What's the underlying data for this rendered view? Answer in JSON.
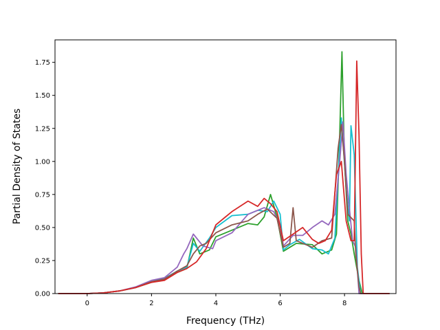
{
  "chart_data": {
    "type": "line",
    "title": "",
    "xlabel": "Frequency (THz)",
    "ylabel": "Partial Density of States",
    "xlim": [
      -1.0,
      9.6
    ],
    "ylim": [
      0.0,
      1.92
    ],
    "xticks": [
      0,
      2,
      4,
      6,
      8
    ],
    "xtick_labels": [
      "0",
      "2",
      "4",
      "6",
      "8"
    ],
    "yticks": [
      0.0,
      0.25,
      0.5,
      0.75,
      1.0,
      1.25,
      1.5,
      1.75
    ],
    "ytick_labels": [
      "0.00",
      "0.25",
      "0.50",
      "0.75",
      "1.00",
      "1.25",
      "1.50",
      "1.75"
    ],
    "grid": false,
    "legend": "none",
    "series": [
      {
        "color": "#2ca02c",
        "points": [
          [
            -0.9,
            0
          ],
          [
            0,
            0
          ],
          [
            0.5,
            0.005
          ],
          [
            1,
            0.02
          ],
          [
            1.5,
            0.045
          ],
          [
            2,
            0.085
          ],
          [
            2.4,
            0.11
          ],
          [
            2.8,
            0.16
          ],
          [
            3.1,
            0.19
          ],
          [
            3.3,
            0.42
          ],
          [
            3.5,
            0.3
          ],
          [
            3.8,
            0.33
          ],
          [
            4,
            0.43
          ],
          [
            4.5,
            0.48
          ],
          [
            5,
            0.53
          ],
          [
            5.3,
            0.52
          ],
          [
            5.5,
            0.58
          ],
          [
            5.7,
            0.75
          ],
          [
            5.9,
            0.58
          ],
          [
            6.1,
            0.32
          ],
          [
            6.3,
            0.35
          ],
          [
            6.5,
            0.38
          ],
          [
            7,
            0.37
          ],
          [
            7.3,
            0.3
          ],
          [
            7.6,
            0.33
          ],
          [
            7.75,
            0.45
          ],
          [
            7.85,
            1.2
          ],
          [
            7.92,
            1.83
          ],
          [
            8.0,
            1.0
          ],
          [
            8.1,
            0.55
          ],
          [
            8.2,
            0.45
          ],
          [
            8.3,
            0.3
          ],
          [
            8.45,
            0.1
          ],
          [
            8.55,
            0
          ],
          [
            9.4,
            0
          ]
        ]
      },
      {
        "color": "#17becf",
        "points": [
          [
            -0.9,
            0
          ],
          [
            0,
            0
          ],
          [
            0.5,
            0.005
          ],
          [
            1,
            0.02
          ],
          [
            1.5,
            0.045
          ],
          [
            2,
            0.09
          ],
          [
            2.4,
            0.115
          ],
          [
            2.8,
            0.17
          ],
          [
            3.1,
            0.2
          ],
          [
            3.3,
            0.38
          ],
          [
            3.5,
            0.32
          ],
          [
            3.8,
            0.42
          ],
          [
            4,
            0.5
          ],
          [
            4.5,
            0.59
          ],
          [
            5,
            0.6
          ],
          [
            5.3,
            0.63
          ],
          [
            5.6,
            0.62
          ],
          [
            5.8,
            0.7
          ],
          [
            6.0,
            0.6
          ],
          [
            6.1,
            0.33
          ],
          [
            6.3,
            0.37
          ],
          [
            6.6,
            0.41
          ],
          [
            7,
            0.34
          ],
          [
            7.3,
            0.33
          ],
          [
            7.5,
            0.3
          ],
          [
            7.7,
            0.42
          ],
          [
            7.9,
            1.33
          ],
          [
            8.05,
            0.8
          ],
          [
            8.15,
            0.55
          ],
          [
            8.2,
            1.27
          ],
          [
            8.3,
            1.05
          ],
          [
            8.4,
            0.2
          ],
          [
            8.5,
            0
          ],
          [
            9.4,
            0
          ]
        ]
      },
      {
        "color": "#9467bd",
        "points": [
          [
            -0.9,
            0
          ],
          [
            0,
            0
          ],
          [
            0.5,
            0.005
          ],
          [
            1,
            0.02
          ],
          [
            1.5,
            0.05
          ],
          [
            2,
            0.1
          ],
          [
            2.4,
            0.12
          ],
          [
            2.8,
            0.2
          ],
          [
            3.0,
            0.3
          ],
          [
            3.1,
            0.34
          ],
          [
            3.3,
            0.45
          ],
          [
            3.6,
            0.36
          ],
          [
            3.9,
            0.34
          ],
          [
            4,
            0.4
          ],
          [
            4.5,
            0.46
          ],
          [
            5,
            0.6
          ],
          [
            5.5,
            0.65
          ],
          [
            5.8,
            0.62
          ],
          [
            6.0,
            0.52
          ],
          [
            6.1,
            0.36
          ],
          [
            6.4,
            0.44
          ],
          [
            6.7,
            0.44
          ],
          [
            7,
            0.5
          ],
          [
            7.3,
            0.55
          ],
          [
            7.5,
            0.52
          ],
          [
            7.7,
            0.6
          ],
          [
            7.85,
            1.0
          ],
          [
            7.95,
            1.3
          ],
          [
            8.05,
            0.9
          ],
          [
            8.25,
            0.4
          ],
          [
            8.35,
            0.35
          ],
          [
            8.45,
            0
          ],
          [
            9.4,
            0
          ]
        ]
      },
      {
        "color": "#8c564b",
        "points": [
          [
            -0.9,
            0
          ],
          [
            0,
            0
          ],
          [
            0.5,
            0.005
          ],
          [
            1,
            0.02
          ],
          [
            1.5,
            0.045
          ],
          [
            2,
            0.09
          ],
          [
            2.4,
            0.11
          ],
          [
            2.8,
            0.17
          ],
          [
            3.1,
            0.21
          ],
          [
            3.3,
            0.3
          ],
          [
            3.5,
            0.36
          ],
          [
            3.7,
            0.38
          ],
          [
            4,
            0.46
          ],
          [
            4.5,
            0.52
          ],
          [
            5,
            0.55
          ],
          [
            5.3,
            0.6
          ],
          [
            5.6,
            0.64
          ],
          [
            5.9,
            0.57
          ],
          [
            6.1,
            0.35
          ],
          [
            6.3,
            0.38
          ],
          [
            6.4,
            0.65
          ],
          [
            6.5,
            0.4
          ],
          [
            7,
            0.35
          ],
          [
            7.3,
            0.4
          ],
          [
            7.6,
            0.42
          ],
          [
            7.8,
            1.1
          ],
          [
            7.9,
            1.28
          ],
          [
            8.0,
            1.0
          ],
          [
            8.1,
            0.6
          ],
          [
            8.3,
            0.55
          ],
          [
            8.35,
            0.3
          ],
          [
            8.45,
            0.05
          ],
          [
            8.5,
            0
          ],
          [
            9.4,
            0
          ]
        ]
      },
      {
        "color": "#d62728",
        "points": [
          [
            -0.9,
            0
          ],
          [
            0,
            0
          ],
          [
            0.5,
            0.005
          ],
          [
            1,
            0.02
          ],
          [
            1.5,
            0.045
          ],
          [
            2,
            0.085
          ],
          [
            2.4,
            0.1
          ],
          [
            2.8,
            0.16
          ],
          [
            3.1,
            0.19
          ],
          [
            3.4,
            0.24
          ],
          [
            3.7,
            0.34
          ],
          [
            4,
            0.52
          ],
          [
            4.3,
            0.58
          ],
          [
            4.5,
            0.62
          ],
          [
            5,
            0.7
          ],
          [
            5.3,
            0.66
          ],
          [
            5.5,
            0.72
          ],
          [
            5.7,
            0.68
          ],
          [
            5.9,
            0.62
          ],
          [
            6.1,
            0.4
          ],
          [
            6.4,
            0.45
          ],
          [
            6.7,
            0.5
          ],
          [
            7,
            0.41
          ],
          [
            7.2,
            0.38
          ],
          [
            7.4,
            0.4
          ],
          [
            7.6,
            0.48
          ],
          [
            7.75,
            0.9
          ],
          [
            7.9,
            1.0
          ],
          [
            8.05,
            0.55
          ],
          [
            8.2,
            0.4
          ],
          [
            8.3,
            0.4
          ],
          [
            8.38,
            1.76
          ],
          [
            8.45,
            1.2
          ],
          [
            8.52,
            0.3
          ],
          [
            8.58,
            0
          ],
          [
            9.4,
            0
          ]
        ]
      }
    ]
  }
}
